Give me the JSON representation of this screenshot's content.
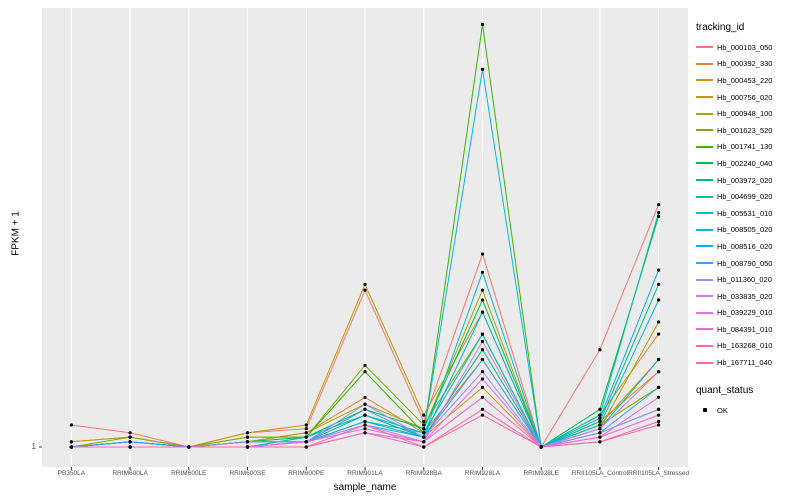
{
  "figure": {
    "background": "#FFFFFF"
  },
  "chart_data": {
    "type": "line",
    "title": "",
    "xlabel": "sample_name",
    "ylabel": "FPKM + 1",
    "y_scale": "log10",
    "y_tick_labels": [
      "1"
    ],
    "ylim_log_decades": [
      0,
      3.55
    ],
    "grid": "vertical-major-only",
    "panel_bg": "#EBEBEB",
    "grid_color": "#FFFFFF",
    "axis_text_color": "#4D4D4D",
    "point_color": "#000000",
    "legend_position": "right",
    "legend_title": "tracking_id",
    "quant_legend": {
      "title": "quant_status",
      "items": [
        {
          "label": "OK",
          "marker": "black-point"
        }
      ]
    },
    "categories": [
      "PB350LA",
      "RRIM600LA",
      "RRIM600LE",
      "RRIM600SE",
      "RRIM600PE",
      "RRIM901LA",
      "RRIM928BA",
      "RRIM928LA",
      "RRIM928LE",
      "RRII105LA_Control",
      "RRII105LA_Stressed"
    ],
    "series": [
      {
        "name": "Hb_000103_050",
        "color": "#F8766D",
        "values": [
          1.5,
          1.3,
          1.0,
          1.3,
          1.4,
          18,
          1.6,
          35,
          1.0,
          6.0,
          87
        ]
      },
      {
        "name": "Hb_000392_330",
        "color": "#EA8331",
        "values": [
          1.1,
          1.2,
          1.0,
          1.1,
          1.3,
          2.5,
          1.3,
          5.0,
          1.0,
          1.8,
          8.0
        ]
      },
      {
        "name": "Hb_000453_220",
        "color": "#D89000",
        "values": [
          1.0,
          1.1,
          1.0,
          1.2,
          1.2,
          1.8,
          1.2,
          3.0,
          1.0,
          1.5,
          5.0
        ]
      },
      {
        "name": "Hb_000756_020",
        "color": "#C09B00",
        "values": [
          1.1,
          1.2,
          1.0,
          1.3,
          1.5,
          20,
          1.8,
          12,
          1.0,
          1.6,
          4.0
        ]
      },
      {
        "name": "Hb_000948_100",
        "color": "#A3A500",
        "values": [
          1.0,
          1.1,
          1.0,
          1.1,
          1.3,
          2.2,
          1.4,
          18,
          1.0,
          1.4,
          10
        ]
      },
      {
        "name": "Hb_001623_520",
        "color": "#7CAE00",
        "values": [
          1.0,
          1.2,
          1.0,
          1.2,
          1.2,
          4.5,
          1.5,
          8.0,
          1.0,
          1.5,
          3.0
        ]
      },
      {
        "name": "Hb_001741_130",
        "color": "#39B600",
        "values": [
          1.0,
          1.1,
          1.0,
          1.0,
          1.2,
          4.0,
          1.3,
          2400,
          1.0,
          1.3,
          2.0
        ]
      },
      {
        "name": "Hb_002240_040",
        "color": "#00BB4E",
        "values": [
          1.0,
          1.1,
          1.0,
          1.1,
          1.2,
          2.0,
          1.4,
          15,
          1.0,
          2.0,
          70
        ]
      },
      {
        "name": "Hb_003972_020",
        "color": "#00BF7D",
        "values": [
          1.0,
          1.0,
          1.0,
          1.1,
          1.1,
          1.8,
          1.2,
          6.0,
          1.0,
          1.6,
          20
        ]
      },
      {
        "name": "Hb_004699_020",
        "color": "#00C1A3",
        "values": [
          1.0,
          1.1,
          1.0,
          1.0,
          1.1,
          1.6,
          1.3,
          8.0,
          1.0,
          1.8,
          75
        ]
      },
      {
        "name": "Hb_005531_010",
        "color": "#00BFC4",
        "values": [
          1.0,
          1.0,
          1.0,
          1.1,
          1.1,
          1.5,
          1.2,
          25,
          1.0,
          1.4,
          5.0
        ]
      },
      {
        "name": "Hb_008505_020",
        "color": "#00BAE0",
        "values": [
          1.0,
          1.1,
          1.0,
          1.0,
          1.2,
          1.8,
          1.3,
          1050,
          1.0,
          1.5,
          15
        ]
      },
      {
        "name": "Hb_008516_020",
        "color": "#00B0F6",
        "values": [
          1.0,
          1.0,
          1.0,
          1.1,
          1.1,
          1.6,
          1.2,
          12,
          1.0,
          1.7,
          26
        ]
      },
      {
        "name": "Hb_008790_050",
        "color": "#35A2FF",
        "values": [
          1.0,
          1.1,
          1.0,
          1.0,
          1.1,
          2.0,
          1.2,
          5.0,
          1.0,
          1.3,
          3.0
        ]
      },
      {
        "name": "Hb_011360_020",
        "color": "#9590FF",
        "values": [
          1.0,
          1.0,
          1.0,
          1.1,
          1.1,
          2.2,
          1.2,
          4.0,
          1.0,
          1.3,
          2.0
        ]
      },
      {
        "name": "Hb_033835_020",
        "color": "#C77CFF",
        "values": [
          1.0,
          1.0,
          1.0,
          1.0,
          1.1,
          1.5,
          1.1,
          7.0,
          1.0,
          1.4,
          4.0
        ]
      },
      {
        "name": "Hb_039229_010",
        "color": "#E76BF3",
        "values": [
          1.0,
          1.0,
          1.0,
          1.0,
          1.1,
          1.4,
          1.1,
          3.5,
          1.0,
          1.2,
          2.5
        ]
      },
      {
        "name": "Hb_084391_010",
        "color": "#FA62DB",
        "values": [
          1.0,
          1.0,
          1.0,
          1.0,
          1.0,
          1.3,
          1.1,
          2.5,
          1.0,
          1.2,
          1.8
        ]
      },
      {
        "name": "Hb_163268_010",
        "color": "#FF62BC",
        "values": [
          1.0,
          1.0,
          1.0,
          1.0,
          1.0,
          1.3,
          1.0,
          2.0,
          1.0,
          1.1,
          1.6
        ]
      },
      {
        "name": "Hb_167711_040",
        "color": "#FF6A98",
        "values": [
          1.0,
          1.0,
          1.0,
          1.0,
          1.0,
          1.5,
          1.0,
          1.8,
          1.0,
          1.1,
          1.5
        ]
      }
    ]
  }
}
